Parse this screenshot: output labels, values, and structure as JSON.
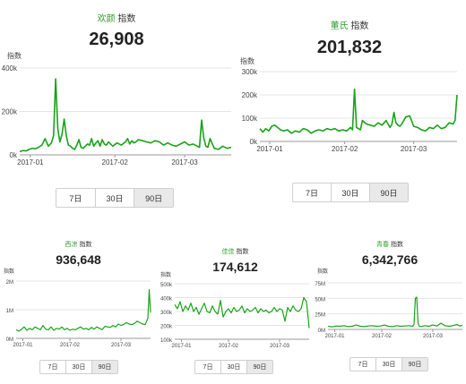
{
  "colors": {
    "line": "#19a319",
    "keyword": "#2e9e2e",
    "grid": "#e4e4e4",
    "axis": "#9a9a9a"
  },
  "index_suffix": "指数",
  "range_buttons": [
    "7日",
    "30日",
    "90日"
  ],
  "active_range": "90日",
  "cards": [
    {
      "keyword": "欢颜",
      "value": "26,908",
      "ylabel": "指数",
      "chart_data": {
        "type": "line",
        "y_ticks": [
          "400k",
          "200k",
          "0k"
        ],
        "x_ticks": [
          "2017-01",
          "2017-02",
          "2017-03"
        ],
        "ylim": [
          0,
          400000
        ],
        "x": [
          0,
          1.5,
          3,
          4.5,
          6,
          7.5,
          9,
          10.5,
          12,
          13.5,
          15,
          16,
          17,
          18,
          19,
          20,
          21,
          22,
          23,
          24,
          25,
          26,
          27,
          28,
          29,
          30,
          31,
          32,
          33,
          34,
          35,
          36,
          37,
          38,
          39,
          40,
          41,
          42,
          44,
          46,
          48,
          50,
          51,
          52,
          53,
          54,
          55,
          56,
          58,
          60,
          62,
          64,
          66,
          68,
          70,
          72,
          74,
          76,
          78,
          80,
          82,
          84,
          85,
          86,
          87,
          88,
          89,
          90,
          92,
          94,
          96,
          98,
          100
        ],
        "y": [
          15000,
          20000,
          18000,
          25000,
          30000,
          28000,
          35000,
          45000,
          75000,
          40000,
          55000,
          90000,
          350000,
          120000,
          60000,
          95000,
          165000,
          90000,
          45000,
          40000,
          30000,
          25000,
          45000,
          70000,
          35000,
          30000,
          40000,
          50000,
          45000,
          75000,
          40000,
          55000,
          65000,
          40000,
          70000,
          50000,
          45000,
          60000,
          40000,
          55000,
          45000,
          60000,
          75000,
          50000,
          65000,
          55000,
          60000,
          70000,
          65000,
          60000,
          55000,
          65000,
          60000,
          45000,
          55000,
          45000,
          40000,
          50000,
          60000,
          45000,
          50000,
          40000,
          35000,
          160000,
          80000,
          40000,
          35000,
          75000,
          30000,
          25000,
          40000,
          30000,
          35000
        ],
        "x_tick_pos": [
          5,
          45,
          78
        ]
      }
    },
    {
      "keyword": "董氏",
      "value": "201,832",
      "ylabel": "指数",
      "chart_data": {
        "type": "line",
        "y_ticks": [
          "300k",
          "200k",
          "100k",
          "0k"
        ],
        "x_ticks": [
          "2017-01",
          "2017-02",
          "2017-03"
        ],
        "ylim": [
          0,
          300000
        ],
        "x": [
          0,
          1.5,
          3,
          4.5,
          6,
          7.5,
          9,
          10.5,
          12,
          14,
          16,
          18,
          20,
          22,
          24,
          26,
          28,
          30,
          32,
          34,
          36,
          38,
          40,
          42,
          44,
          46,
          47,
          48,
          49,
          50,
          51,
          52,
          54,
          56,
          58,
          60,
          62,
          64,
          66,
          67,
          68,
          69,
          70,
          71,
          72,
          74,
          76,
          78,
          80,
          82,
          84,
          86,
          88,
          90,
          92,
          94,
          96,
          98,
          99,
          100
        ],
        "y": [
          55000,
          40000,
          55000,
          45000,
          65000,
          70000,
          60000,
          50000,
          45000,
          50000,
          35000,
          45000,
          40000,
          55000,
          50000,
          35000,
          45000,
          50000,
          45000,
          55000,
          50000,
          55000,
          45000,
          50000,
          45000,
          60000,
          50000,
          225000,
          60000,
          55000,
          50000,
          90000,
          75000,
          70000,
          65000,
          80000,
          70000,
          90000,
          60000,
          75000,
          125000,
          80000,
          70000,
          65000,
          75000,
          105000,
          110000,
          65000,
          60000,
          50000,
          45000,
          60000,
          55000,
          70000,
          55000,
          60000,
          80000,
          75000,
          90000,
          200000
        ],
        "x_tick_pos": [
          5,
          43,
          78
        ]
      }
    },
    {
      "keyword": "西凉",
      "value": "936,648",
      "ylabel": "指数",
      "chart_data": {
        "type": "line",
        "y_ticks": [
          "2M",
          "1M",
          "0M"
        ],
        "x_ticks": [
          "2017-01",
          "2017-02",
          "2017-03"
        ],
        "ylim": [
          0,
          2000000
        ],
        "x": [
          0,
          2,
          4,
          6,
          8,
          10,
          12,
          14,
          16,
          18,
          20,
          22,
          24,
          26,
          28,
          30,
          32,
          34,
          36,
          38,
          40,
          42,
          44,
          46,
          48,
          50,
          52,
          54,
          56,
          58,
          60,
          62,
          64,
          66,
          68,
          70,
          72,
          74,
          76,
          78,
          80,
          82,
          84,
          86,
          88,
          90,
          92,
          94,
          96,
          98,
          99,
          100
        ],
        "y": [
          300000,
          250000,
          320000,
          400000,
          280000,
          350000,
          300000,
          400000,
          350000,
          300000,
          450000,
          320000,
          300000,
          400000,
          280000,
          350000,
          320000,
          400000,
          300000,
          350000,
          280000,
          320000,
          300000,
          350000,
          400000,
          320000,
          350000,
          300000,
          380000,
          320000,
          400000,
          350000,
          300000,
          420000,
          400000,
          380000,
          450000,
          400000,
          500000,
          450000,
          480000,
          550000,
          500000,
          480000,
          520000,
          600000,
          550000,
          500000,
          480000,
          700000,
          1700000,
          900000
        ],
        "x_tick_pos": [
          5,
          40,
          78
        ]
      }
    },
    {
      "keyword": "佳佳",
      "value": "174,612",
      "ylabel": "指数",
      "chart_data": {
        "type": "line",
        "y_ticks": [
          "500k",
          "400k",
          "300k",
          "200k",
          "100k"
        ],
        "x_ticks": [
          "2017-01",
          "2017-02",
          "2017-03"
        ],
        "ylim": [
          100000,
          500000
        ],
        "x": [
          0,
          2,
          4,
          6,
          8,
          10,
          12,
          14,
          16,
          18,
          20,
          22,
          24,
          26,
          28,
          30,
          32,
          34,
          36,
          38,
          40,
          42,
          44,
          46,
          48,
          50,
          52,
          54,
          56,
          58,
          60,
          62,
          64,
          66,
          68,
          70,
          72,
          74,
          76,
          78,
          80,
          82,
          84,
          86,
          88,
          90,
          92,
          94,
          96,
          98,
          100
        ],
        "y": [
          350000,
          320000,
          370000,
          300000,
          340000,
          310000,
          360000,
          300000,
          330000,
          280000,
          320000,
          360000,
          300000,
          290000,
          340000,
          300000,
          280000,
          380000,
          260000,
          300000,
          320000,
          290000,
          330000,
          300000,
          310000,
          340000,
          290000,
          320000,
          300000,
          310000,
          330000,
          290000,
          320000,
          300000,
          310000,
          290000,
          300000,
          330000,
          300000,
          320000,
          310000,
          230000,
          330000,
          300000,
          340000,
          310000,
          300000,
          320000,
          400000,
          370000,
          180000
        ],
        "x_tick_pos": [
          5,
          40,
          78
        ]
      }
    },
    {
      "keyword": "青春",
      "value": "6,342,766",
      "ylabel": "指数",
      "chart_data": {
        "type": "line",
        "y_ticks": [
          "75M",
          "50M",
          "25M",
          "0M"
        ],
        "x_ticks": [
          "2017-01",
          "2017-02",
          "2017-03"
        ],
        "ylim": [
          0,
          75000000
        ],
        "x": [
          0,
          3,
          6,
          9,
          12,
          15,
          18,
          21,
          24,
          27,
          30,
          33,
          36,
          39,
          42,
          45,
          48,
          51,
          54,
          57,
          60,
          63,
          64,
          65,
          66,
          67,
          68,
          69,
          72,
          75,
          78,
          81,
          84,
          87,
          90,
          93,
          96,
          98,
          100
        ],
        "y": [
          5000000,
          4000000,
          5500000,
          5000000,
          6000000,
          4500000,
          5000000,
          7000000,
          5000000,
          4500000,
          5500000,
          6000000,
          5000000,
          5500000,
          7000000,
          5000000,
          4500000,
          6000000,
          5000000,
          5500000,
          6000000,
          5000000,
          8000000,
          50000000,
          52000000,
          10000000,
          5000000,
          4500000,
          6000000,
          5000000,
          7000000,
          5500000,
          10000000,
          6000000,
          5000000,
          6000000,
          8000000,
          5500000,
          6500000
        ],
        "x_tick_pos": [
          5,
          40,
          78
        ]
      }
    }
  ]
}
